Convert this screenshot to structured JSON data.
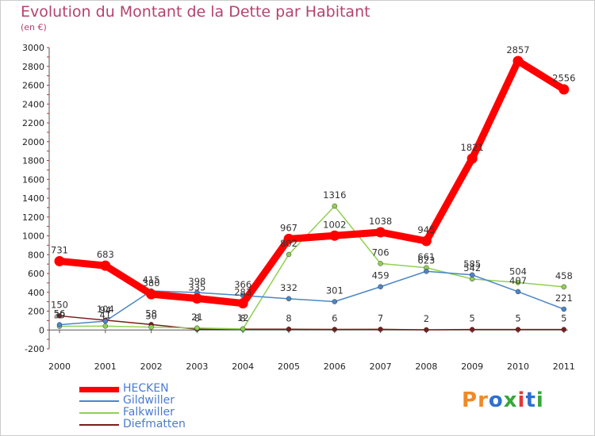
{
  "title": "Evolution du Montant de la Dette par Habitant",
  "subtitle": "(en €)",
  "logo": {
    "text": "Proxiti",
    "colors": [
      "#f08a24",
      "#f08a24",
      "#2f6fd0",
      "#35a83a",
      "#e23a3a",
      "#2f6fd0",
      "#35a83a"
    ]
  },
  "chart_data": {
    "type": "line",
    "title": "Evolution du Montant de la Dette par Habitant",
    "ylabel": "(en €)",
    "xlabel": "",
    "categories": [
      "2000",
      "2001",
      "2002",
      "2003",
      "2004",
      "2005",
      "2006",
      "2007",
      "2008",
      "2009",
      "2010",
      "2011"
    ],
    "ylim": [
      -200,
      3000
    ],
    "yticks": [
      -200,
      0,
      200,
      400,
      600,
      800,
      1000,
      1200,
      1400,
      1600,
      1800,
      2000,
      2200,
      2400,
      2600,
      2800,
      3000
    ],
    "grid": false,
    "legend_position": "bottom-left",
    "series": [
      {
        "name": "HECKEN",
        "color": "#ff0000",
        "values": [
          731,
          683,
          380,
          335,
          283,
          967,
          1002,
          1038,
          945,
          1821,
          2857,
          2556
        ]
      },
      {
        "name": "Gildwiller",
        "color": "#4a86c8",
        "values": [
          56,
          94,
          415,
          398,
          366,
          332,
          301,
          459,
          623,
          585,
          407,
          221
        ]
      },
      {
        "name": "Falkwiller",
        "color": "#90d050",
        "values": [
          39,
          41,
          30,
          21,
          12,
          802,
          1316,
          706,
          661,
          542,
          504,
          458
        ]
      },
      {
        "name": "Diefmatten",
        "color": "#7a1c1c",
        "values": [
          150,
          104,
          58,
          8,
          8,
          8,
          6,
          7,
          2,
          5,
          5,
          5
        ]
      }
    ]
  }
}
